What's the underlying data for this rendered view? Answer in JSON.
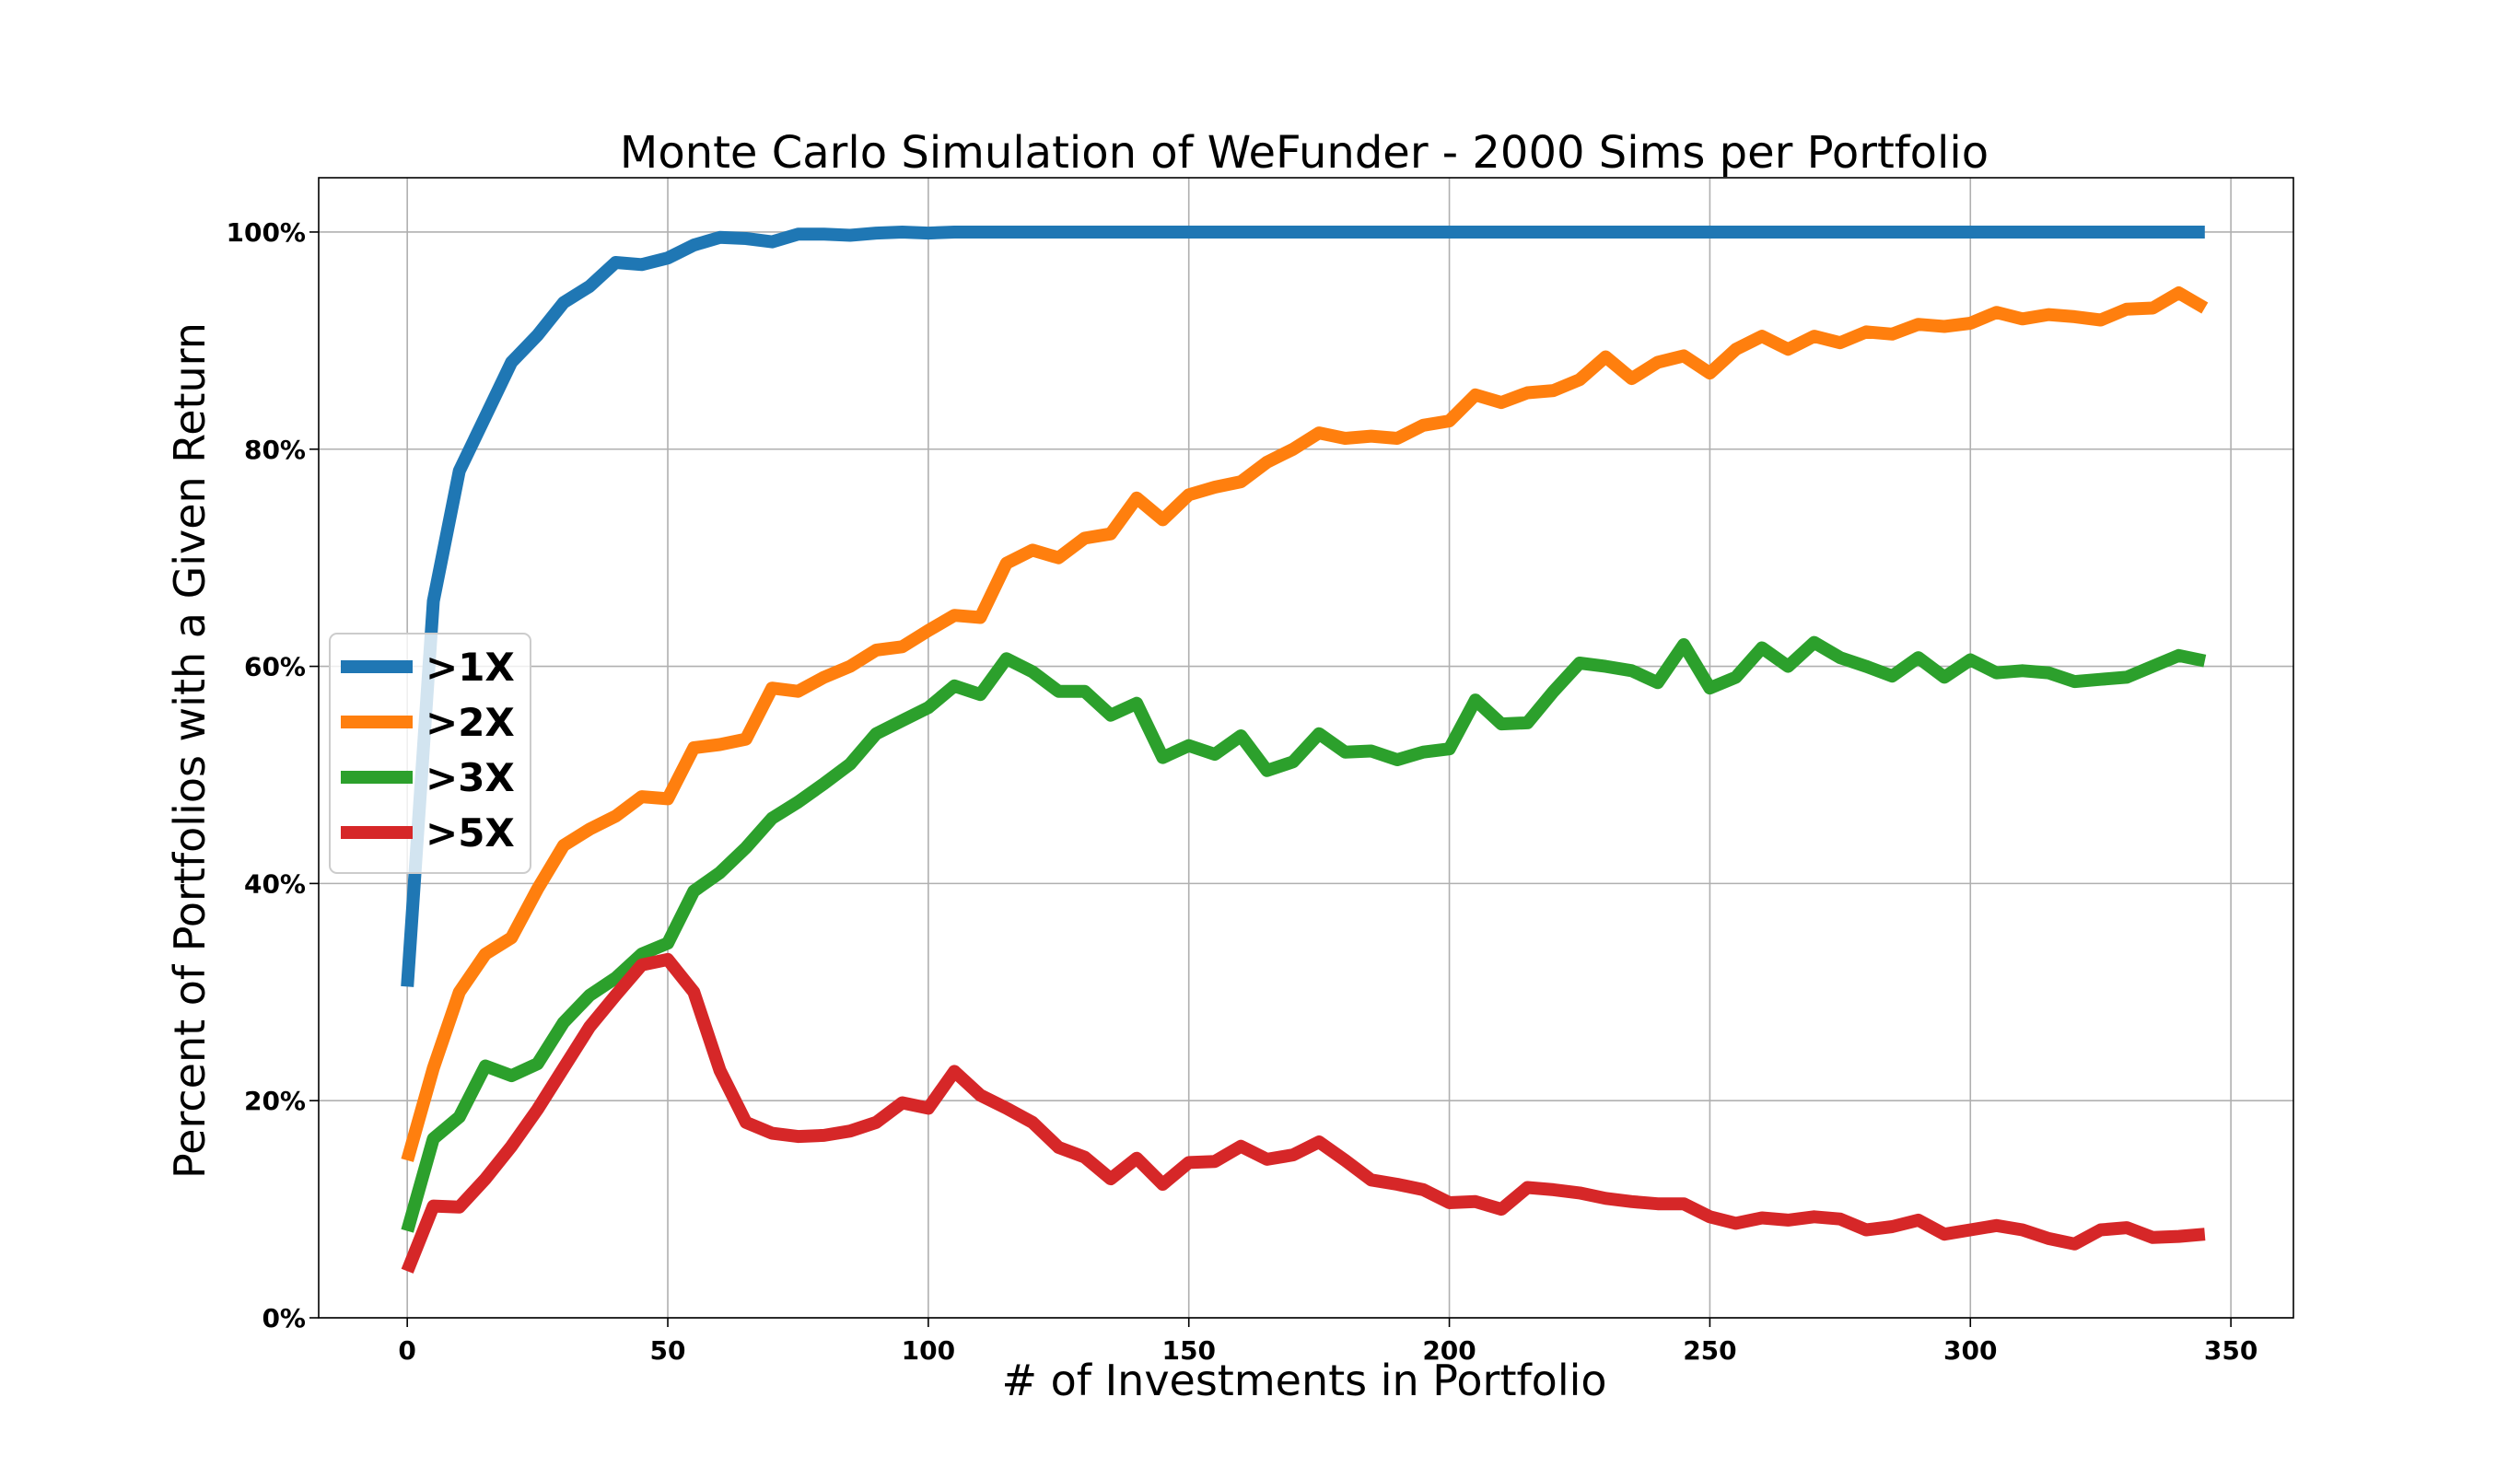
{
  "chart_data": {
    "type": "line",
    "title": "Monte Carlo Simulation of WeFunder - 2000 Sims per Portfolio",
    "xlabel": "# of Investments in Portfolio",
    "ylabel": "Percent of Portfolios with a Given Return",
    "xlim": [
      -17,
      362
    ],
    "ylim": [
      0,
      1.05
    ],
    "xticks": [
      0,
      50,
      100,
      150,
      200,
      250,
      300,
      350
    ],
    "yticks": [
      0,
      0.2,
      0.4,
      0.6,
      0.8,
      1.0
    ],
    "ytick_labels": [
      "0%",
      "20%",
      "40%",
      "60%",
      "80%",
      "100%"
    ],
    "grid": true,
    "legend_position": "center-left",
    "x": [
      0,
      5,
      10,
      15,
      20,
      25,
      30,
      35,
      40,
      45,
      50,
      55,
      60,
      65,
      70,
      75,
      80,
      85,
      90,
      95,
      100,
      105,
      110,
      115,
      120,
      125,
      130,
      135,
      140,
      145,
      150,
      155,
      160,
      165,
      170,
      175,
      180,
      185,
      190,
      195,
      200,
      205,
      210,
      215,
      220,
      225,
      230,
      235,
      240,
      245,
      250,
      255,
      260,
      265,
      270,
      275,
      280,
      285,
      290,
      295,
      300,
      305,
      310,
      315,
      320,
      325,
      330,
      335,
      340,
      345
    ],
    "series": [
      {
        "name": ">1X",
        "color": "#1f77b4",
        "values": [
          0.305,
          0.66,
          0.78,
          0.83,
          0.88,
          0.905,
          0.935,
          0.95,
          0.972,
          0.97,
          0.976,
          0.988,
          0.995,
          0.994,
          0.991,
          0.998,
          0.998,
          0.997,
          0.999,
          1.0,
          0.999,
          1.0,
          1.0,
          1.0,
          1.0,
          1.0,
          1.0,
          1.0,
          1.0,
          1.0,
          1.0,
          1.0,
          1.0,
          1.0,
          1.0,
          1.0,
          1.0,
          1.0,
          1.0,
          1.0,
          1.0,
          1.0,
          1.0,
          1.0,
          1.0,
          1.0,
          1.0,
          1.0,
          1.0,
          1.0,
          1.0,
          1.0,
          1.0,
          1.0,
          1.0,
          1.0,
          1.0,
          1.0,
          1.0,
          1.0,
          1.0,
          1.0,
          1.0,
          1.0,
          1.0,
          1.0,
          1.0,
          1.0,
          1.0,
          1.0
        ]
      },
      {
        "name": ">2X",
        "color": "#ff7f0e",
        "values": [
          0.145,
          0.23,
          0.3,
          0.335,
          0.35,
          0.395,
          0.435,
          0.45,
          0.462,
          0.48,
          0.478,
          0.525,
          0.528,
          0.533,
          0.58,
          0.577,
          0.59,
          0.6,
          0.615,
          0.618,
          0.633,
          0.647,
          0.645,
          0.695,
          0.707,
          0.7,
          0.718,
          0.722,
          0.755,
          0.735,
          0.758,
          0.765,
          0.77,
          0.788,
          0.8,
          0.815,
          0.81,
          0.812,
          0.81,
          0.822,
          0.826,
          0.85,
          0.843,
          0.852,
          0.854,
          0.864,
          0.885,
          0.865,
          0.88,
          0.886,
          0.87,
          0.892,
          0.904,
          0.892,
          0.904,
          0.898,
          0.908,
          0.906,
          0.915,
          0.913,
          0.916,
          0.926,
          0.92,
          0.924,
          0.922,
          0.919,
          0.929,
          0.93,
          0.944,
          0.93
        ]
      },
      {
        "name": ">3X",
        "color": "#2ca02c",
        "values": [
          0.08,
          0.165,
          0.185,
          0.232,
          0.223,
          0.234,
          0.272,
          0.297,
          0.313,
          0.335,
          0.345,
          0.393,
          0.41,
          0.433,
          0.46,
          0.475,
          0.492,
          0.51,
          0.538,
          0.55,
          0.562,
          0.582,
          0.574,
          0.607,
          0.595,
          0.577,
          0.577,
          0.555,
          0.566,
          0.516,
          0.527,
          0.519,
          0.536,
          0.504,
          0.512,
          0.538,
          0.521,
          0.522,
          0.514,
          0.521,
          0.524,
          0.569,
          0.547,
          0.548,
          0.577,
          0.603,
          0.6,
          0.596,
          0.585,
          0.62,
          0.58,
          0.59,
          0.617,
          0.6,
          0.622,
          0.608,
          0.6,
          0.591,
          0.608,
          0.59,
          0.606,
          0.594,
          0.596,
          0.594,
          0.586,
          0.588,
          0.59,
          0.6,
          0.61,
          0.605
        ]
      },
      {
        "name": ">5X",
        "color": "#d62728",
        "values": [
          0.043,
          0.103,
          0.102,
          0.128,
          0.158,
          0.192,
          0.23,
          0.268,
          0.297,
          0.325,
          0.33,
          0.3,
          0.228,
          0.18,
          0.17,
          0.167,
          0.168,
          0.172,
          0.18,
          0.198,
          0.193,
          0.227,
          0.205,
          0.193,
          0.18,
          0.157,
          0.148,
          0.128,
          0.147,
          0.123,
          0.143,
          0.144,
          0.158,
          0.146,
          0.15,
          0.162,
          0.145,
          0.127,
          0.123,
          0.118,
          0.106,
          0.107,
          0.1,
          0.12,
          0.118,
          0.115,
          0.11,
          0.107,
          0.105,
          0.105,
          0.093,
          0.087,
          0.092,
          0.09,
          0.093,
          0.091,
          0.081,
          0.084,
          0.09,
          0.077,
          0.081,
          0.085,
          0.081,
          0.073,
          0.068,
          0.081,
          0.083,
          0.074,
          0.075,
          0.077
        ]
      }
    ]
  }
}
